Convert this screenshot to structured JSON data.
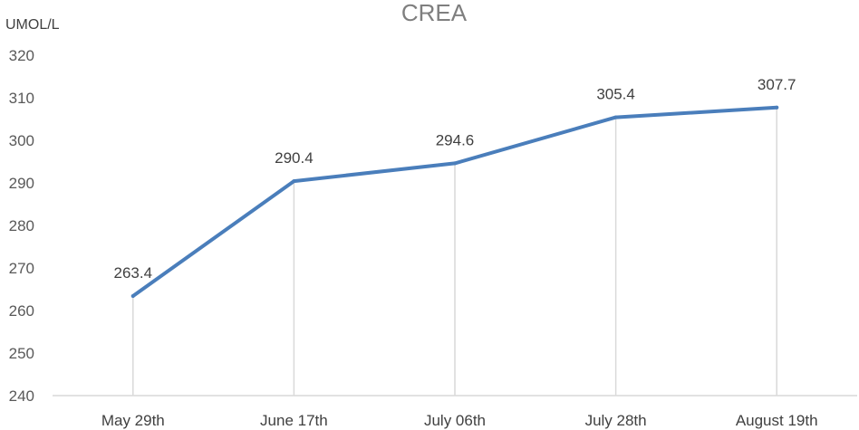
{
  "chart_data": {
    "type": "line",
    "title": "CREA",
    "ylabel": "UMOL/L",
    "xlabel": "",
    "categories": [
      "May 29th",
      "June 17th",
      "July 06th",
      "July 28th",
      "August 19th"
    ],
    "series": [
      {
        "values": [
          263.4,
          290.4,
          294.6,
          305.4,
          307.7
        ],
        "color": "#4a7ebb"
      }
    ],
    "data_labels": [
      "263.4",
      "290.4",
      "294.6",
      "305.4",
      "307.7"
    ],
    "ylim": [
      240,
      320
    ],
    "yticks": [
      "240",
      "250",
      "260",
      "270",
      "280",
      "290",
      "300",
      "310",
      "320"
    ],
    "drop_lines": true,
    "gridlines": false,
    "legend": "none"
  }
}
